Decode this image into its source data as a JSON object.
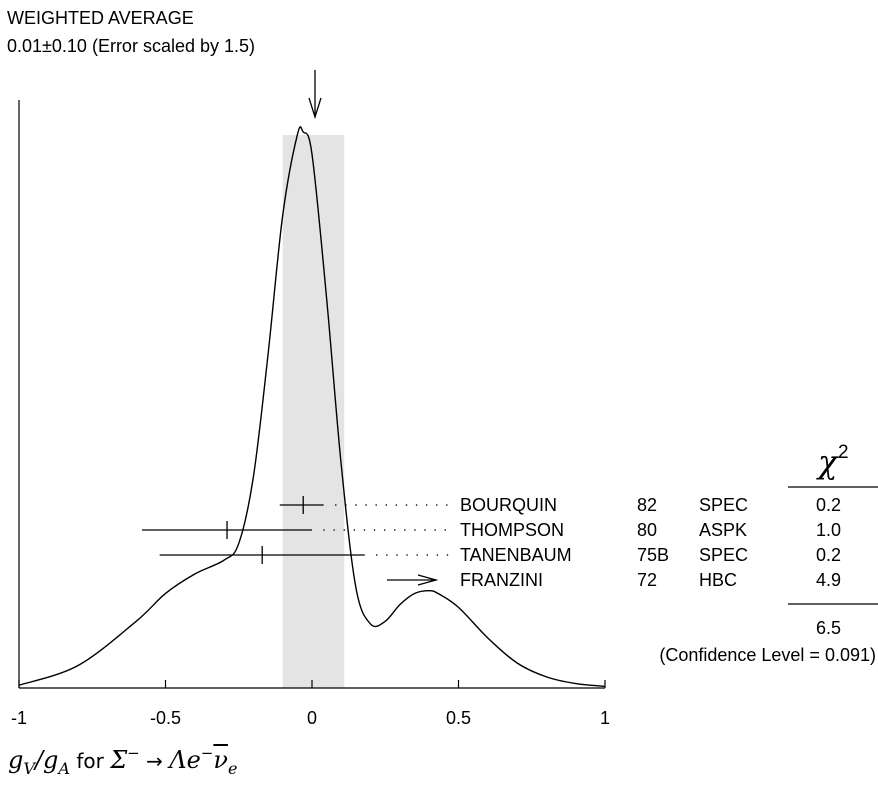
{
  "chart_data": {
    "type": "ideogram",
    "title_line1": "WEIGHTED AVERAGE",
    "title_line2": "0.01±0.10 (Error scaled by 1.5)",
    "average": {
      "value": 0.01,
      "error": 0.1,
      "band": [
        -0.1,
        0.11
      ]
    },
    "xlim": [
      -1,
      1
    ],
    "xticks": [
      -1,
      -0.5,
      0,
      0.5,
      1
    ],
    "xtick_labels": [
      "-1",
      "-0.5",
      "0",
      "0.5",
      "1"
    ],
    "xlabel": {
      "g": "g",
      "V": "V",
      "slash": "/",
      "A": "A",
      "for": " for ",
      "Sigma": "Σ",
      "minus": "−",
      "arrow": " → ",
      "Lambda": "Λ",
      "e": "e",
      "nu": "ν",
      "nu_sub": "e"
    },
    "chi2_header": "χ",
    "chi2_header_power": "2",
    "measurements": [
      {
        "name": "BOURQUIN",
        "year": "82",
        "technique": "SPEC",
        "chi2": "0.2",
        "value": -0.03,
        "err_lo": 0.08,
        "err_hi": 0.07
      },
      {
        "name": "THOMPSON",
        "year": "80",
        "technique": "ASPK",
        "chi2": "1.0",
        "value": -0.29,
        "err_lo": 0.29,
        "err_hi": 0.29
      },
      {
        "name": "TANENBAUM",
        "year": "75B",
        "technique": "SPEC",
        "chi2": "0.2",
        "value": -0.17,
        "err_lo": 0.35,
        "err_hi": 0.35
      },
      {
        "name": "FRANZINI",
        "year": "72",
        "technique": "HBC",
        "chi2": "4.9",
        "off_scale": true
      }
    ],
    "chi2_total": "6.5",
    "confidence_level": "(Confidence Level = 0.091)",
    "curve_x": [
      -1.0,
      -0.8,
      -0.6,
      -0.5,
      -0.4,
      -0.3,
      -0.25,
      -0.2,
      -0.15,
      -0.1,
      -0.05,
      -0.03,
      0.0,
      0.05,
      0.1,
      0.15,
      0.2,
      0.25,
      0.3,
      0.35,
      0.4,
      0.43,
      0.5,
      0.6,
      0.7,
      0.8,
      0.9,
      1.0
    ],
    "curve_y": [
      0.005,
      0.04,
      0.12,
      0.17,
      0.205,
      0.23,
      0.26,
      0.38,
      0.6,
      0.85,
      0.995,
      1.0,
      0.96,
      0.7,
      0.4,
      0.18,
      0.115,
      0.12,
      0.15,
      0.17,
      0.175,
      0.17,
      0.145,
      0.09,
      0.045,
      0.02,
      0.008,
      0.003
    ]
  }
}
